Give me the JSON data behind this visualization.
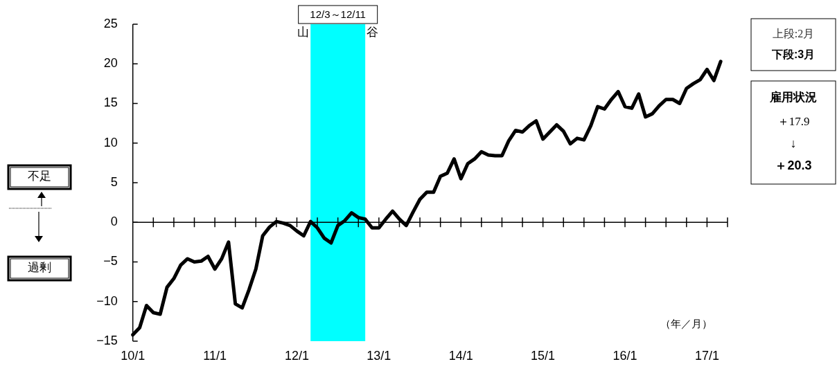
{
  "chart_data": {
    "type": "line",
    "xlabel": "（年／月）",
    "categories": [
      "10/1",
      null,
      null,
      null,
      null,
      null,
      null,
      null,
      null,
      null,
      null,
      null,
      "11/1",
      null,
      null,
      null,
      null,
      null,
      null,
      null,
      null,
      null,
      null,
      null,
      "12/1",
      null,
      null,
      null,
      null,
      null,
      null,
      null,
      null,
      null,
      null,
      null,
      "13/1",
      null,
      null,
      null,
      null,
      null,
      null,
      null,
      null,
      null,
      null,
      null,
      "14/1",
      null,
      null,
      null,
      null,
      null,
      null,
      null,
      null,
      null,
      null,
      null,
      "15/1",
      null,
      null,
      null,
      null,
      null,
      null,
      null,
      null,
      null,
      null,
      null,
      "16/1",
      null,
      null,
      null,
      null,
      null,
      null,
      null,
      null,
      null,
      null,
      null,
      "17/1",
      null,
      null
    ],
    "values": [
      -14.2,
      -13.3,
      -10.5,
      -11.4,
      -11.6,
      -8.2,
      -7.1,
      -5.4,
      -4.6,
      -5.0,
      -4.9,
      -4.3,
      -5.9,
      -4.6,
      -2.5,
      -10.3,
      -10.8,
      -8.5,
      -5.9,
      -1.7,
      -0.6,
      0.1,
      -0.1,
      -0.4,
      -1.1,
      -1.7,
      0.1,
      -0.7,
      -2.0,
      -2.6,
      -0.4,
      0.2,
      1.2,
      0.6,
      0.4,
      -0.7,
      -0.7,
      0.4,
      1.4,
      0.4,
      -0.4,
      1.3,
      2.9,
      3.8,
      3.8,
      5.8,
      6.2,
      8.0,
      5.5,
      7.4,
      8.0,
      8.9,
      8.5,
      8.4,
      8.4,
      10.3,
      11.6,
      11.4,
      12.2,
      12.8,
      10.5,
      11.4,
      12.3,
      11.5,
      9.9,
      10.6,
      10.4,
      12.2,
      14.6,
      14.3,
      15.5,
      16.5,
      14.6,
      14.4,
      16.2,
      13.3,
      13.7,
      14.7,
      15.5,
      15.5,
      15.0,
      16.9,
      17.5,
      18.0,
      19.3,
      17.9,
      20.3
    ],
    "color": "#000000",
    "ylim": [
      -15,
      25
    ],
    "yticks": [
      -15,
      -10,
      -5,
      0,
      5,
      10,
      15,
      20,
      25
    ],
    "annotations": [
      "不足",
      "過剰",
      "上段:2月",
      "下段:3月",
      "雇用状況",
      "＋17.9",
      "↓",
      "＋20.3",
      "山",
      "谷",
      "12/3～12/11"
    ]
  }
}
